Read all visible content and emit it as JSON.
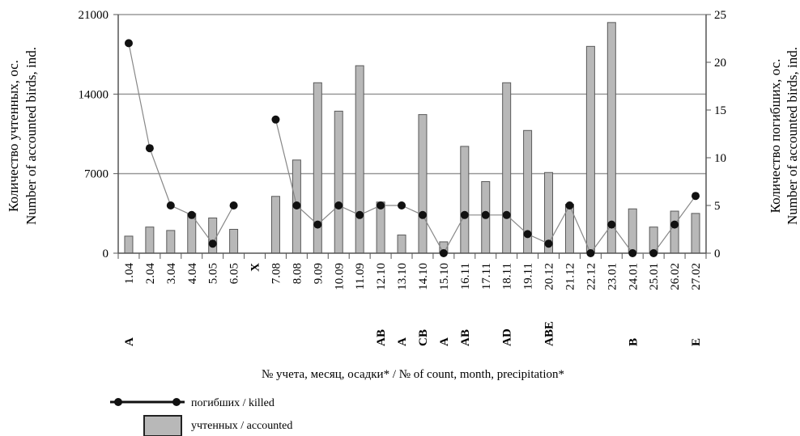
{
  "chart_data": {
    "type": "bar",
    "categories": [
      "1.04",
      "2.04",
      "3.04",
      "4.04",
      "5.05",
      "6.05",
      "X",
      "7.08",
      "8.08",
      "9.09",
      "10.09",
      "11.09",
      "12.10",
      "13.10",
      "14.10",
      "15.10",
      "16.11",
      "17.11",
      "18.11",
      "19.11",
      "20.12",
      "21.12",
      "22.12",
      "23.01",
      "24.01",
      "25.01",
      "26.02",
      "27.02"
    ],
    "precipitation": [
      "A",
      "",
      "",
      "",
      "",
      "",
      "",
      "",
      "",
      "",
      "",
      "",
      "AB",
      "A",
      "CB",
      "A",
      "AB",
      "",
      "AD",
      "",
      "ABE",
      "",
      "",
      "",
      "B",
      "",
      "",
      "E"
    ],
    "series": [
      {
        "name": "учтенных / accounted",
        "kind": "bar",
        "axis": "left",
        "values": [
          1500,
          2300,
          2000,
          3500,
          3100,
          2100,
          null,
          5000,
          8200,
          15000,
          12500,
          16500,
          4500,
          1600,
          12200,
          1000,
          9400,
          6300,
          15000,
          10800,
          7100,
          4300,
          18200,
          20300,
          3900,
          2300,
          3700,
          3500
        ]
      },
      {
        "name": "погибших / killed",
        "kind": "line",
        "axis": "right",
        "values": [
          22,
          11,
          5,
          4,
          1,
          5,
          null,
          14,
          5,
          3,
          5,
          4,
          5,
          5,
          4,
          0,
          4,
          4,
          4,
          2,
          1,
          5,
          0,
          3,
          0,
          0,
          3,
          6
        ]
      }
    ],
    "y_left": {
      "label_ru": "Количество учтенных, ос.",
      "label_en": "Number of accounted birds, ind.",
      "ticks": [
        "0",
        "7000",
        "14000",
        "21000"
      ],
      "range": [
        0,
        21000
      ]
    },
    "y_right": {
      "label_ru": "Количество погибших, ос.",
      "label_en": "Number of accounted birds, ind.",
      "ticks": [
        "0",
        "5",
        "10",
        "15",
        "20",
        "25"
      ],
      "range": [
        0,
        25
      ]
    },
    "xlabel": "№ учета, месяц, осадки* / № of count, month, precipitation*",
    "grid": "horizontal",
    "legend_position": "bottom-left"
  },
  "colors": {
    "bar_fill": "#b8b8b8",
    "bar_stroke": "#5a5a5a",
    "line": "#888888",
    "marker": "#111111",
    "grid": "#9a9a9a",
    "axis": "#555555"
  }
}
